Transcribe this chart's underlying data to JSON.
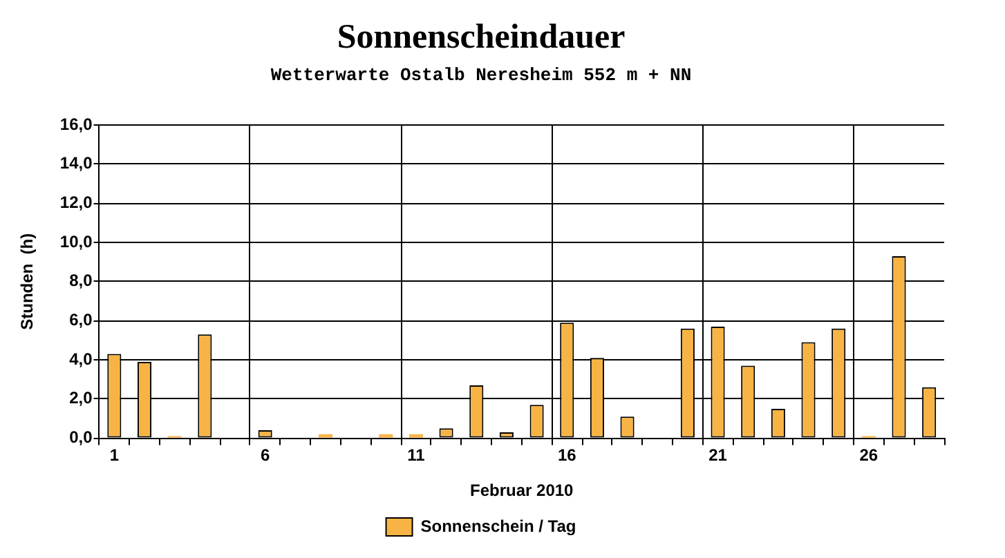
{
  "chart_data": {
    "type": "bar",
    "title": "Sonnenscheindauer",
    "subtitle": "Wetterwarte Ostalb Neresheim 552 m + NN",
    "xlabel": "Februar 2010",
    "ylabel": "Stunden  (h)",
    "categories": [
      "1",
      null,
      null,
      null,
      null,
      "6",
      null,
      null,
      null,
      null,
      "11",
      null,
      null,
      null,
      null,
      "16",
      null,
      null,
      null,
      null,
      "21",
      null,
      null,
      null,
      null,
      "26",
      null,
      null
    ],
    "series": [
      {
        "name": "Sonnenschein / Tag",
        "color": "#f7b445",
        "values": [
          4.3,
          3.9,
          0.1,
          5.3,
          0,
          0.4,
          0,
          0.2,
          0,
          0.2,
          0.2,
          0.5,
          2.7,
          0.3,
          1.7,
          5.9,
          4.1,
          1.1,
          0,
          5.6,
          5.7,
          3.7,
          1.5,
          4.9,
          5.6,
          0.1,
          9.3,
          2.6
        ]
      }
    ],
    "ylim": [
      0,
      16
    ],
    "yticks": [
      {
        "value": 0,
        "label": "0,0"
      },
      {
        "value": 2,
        "label": "2,0"
      },
      {
        "value": 4,
        "label": "4,0"
      },
      {
        "value": 6,
        "label": "6,0"
      },
      {
        "value": 8,
        "label": "8,0"
      },
      {
        "value": 10,
        "label": "10,0"
      },
      {
        "value": 12,
        "label": "12,0"
      },
      {
        "value": 14,
        "label": "14,0"
      },
      {
        "value": 16,
        "label": "16,0"
      }
    ],
    "grid": true,
    "legend": "bottom"
  }
}
